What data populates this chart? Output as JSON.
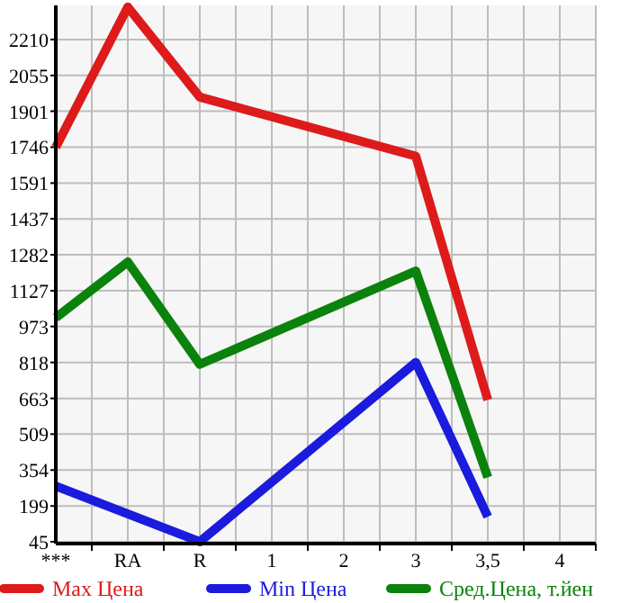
{
  "chart_data": {
    "type": "line",
    "categories": [
      "***",
      "RA",
      "R",
      "1",
      "2",
      "3",
      "3,5",
      "4"
    ],
    "series": [
      {
        "name": "Max Цена",
        "color": "#dd1b1b",
        "values": [
          1746,
          2350,
          1962,
          null,
          null,
          1707,
          656,
          null
        ]
      },
      {
        "name": "Min Цена",
        "color": "#1b1bdd",
        "values": [
          285,
          null,
          45,
          null,
          null,
          818,
          153,
          null
        ]
      },
      {
        "name": "Сред.Цена, т.йен",
        "color": "#0b820b",
        "values": [
          1011,
          1251,
          810,
          null,
          null,
          1212,
          323,
          null
        ]
      }
    ],
    "ylim": [
      37,
      2357
    ],
    "yticks": [
      45,
      199,
      354,
      509,
      663,
      818,
      973,
      1127,
      1282,
      1437,
      1591,
      1746,
      1901,
      2055,
      2210
    ],
    "grid": true,
    "legend": "bottom",
    "marker": "none",
    "line_style": "solid"
  }
}
